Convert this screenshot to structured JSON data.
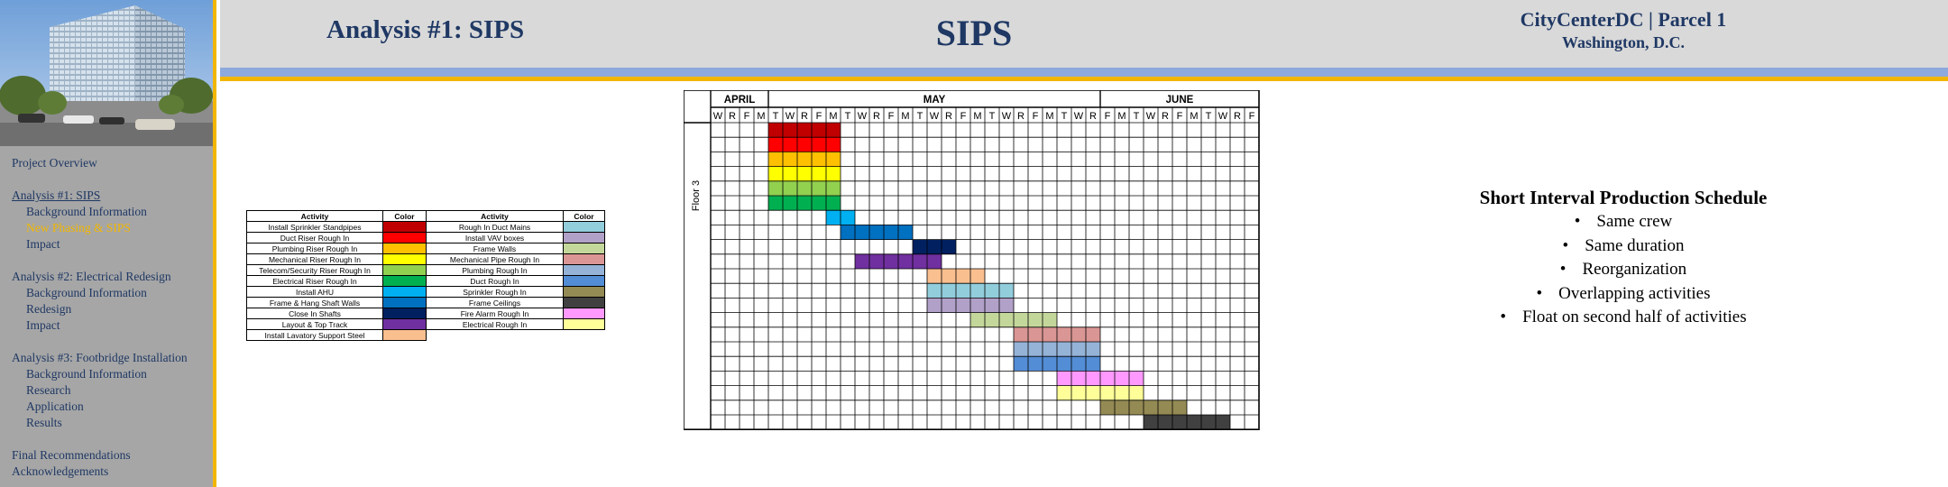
{
  "header": {
    "page_title": "Analysis #1: SIPS",
    "center_title": "SIPS",
    "project_name": "CityCenterDC | Parcel 1",
    "project_city": "Washington, D.C."
  },
  "nav": {
    "items": [
      {
        "label": "Project Overview",
        "level": 0
      },
      {
        "label": "Analysis #1: SIPS",
        "level": 0,
        "current": true,
        "gap_before": true
      },
      {
        "label": "Background Information",
        "level": 1
      },
      {
        "label": "New Phasing & SIPS",
        "level": 1,
        "active": true
      },
      {
        "label": "Impact",
        "level": 1
      },
      {
        "label": "Analysis #2: Electrical  Redesign",
        "level": 0,
        "gap_before": true
      },
      {
        "label": "Background Information",
        "level": 1
      },
      {
        "label": "Redesign",
        "level": 1
      },
      {
        "label": "Impact",
        "level": 1
      },
      {
        "label": "Analysis #3: Footbridge Installation",
        "level": 0,
        "gap_before": true
      },
      {
        "label": "Background Information",
        "level": 1
      },
      {
        "label": "Research",
        "level": 1
      },
      {
        "label": "Application",
        "level": 1
      },
      {
        "label": "Results",
        "level": 1
      },
      {
        "label": "Final Recommendations",
        "level": 0,
        "gap_before": true
      },
      {
        "label": "Acknowledgements",
        "level": 0
      }
    ]
  },
  "legend": {
    "headers": [
      "Activity",
      "Color",
      "Activity",
      "Color"
    ],
    "rows": [
      {
        "left": "Install Sprinkler Standpipes",
        "left_color": "#c00000",
        "right": "Rough In Duct Mains",
        "right_color": "#92cddc"
      },
      {
        "left": "Duct Riser Rough In",
        "left_color": "#ff0000",
        "right": "Install VAV boxes",
        "right_color": "#b1a0c7"
      },
      {
        "left": "Plumbing Riser Rough In",
        "left_color": "#ffc000",
        "right": "Frame Walls",
        "right_color": "#c4d79b"
      },
      {
        "left": "Mechanical Riser Rough In",
        "left_color": "#ffff00",
        "right": "Mechanical Pipe Rough In",
        "right_color": "#da9694"
      },
      {
        "left": "Telecom/Security Riser Rough In",
        "left_color": "#92d050",
        "right": "Plumbing Rough In",
        "right_color": "#95b3d7"
      },
      {
        "left": "Electrical Riser Rough In",
        "left_color": "#00b050",
        "right": "Duct Rough In",
        "right_color": "#538dd5"
      },
      {
        "left": "Install AHU",
        "left_color": "#00b0f0",
        "right": "Sprinkler Rough In",
        "right_color": "#948a54"
      },
      {
        "left": "Frame & Hang Shaft Walls",
        "left_color": "#0070c0",
        "right": "Frame Ceilings",
        "right_color": "#404040"
      },
      {
        "left": "Close In Shafts",
        "left_color": "#002060",
        "right": "Fire Alarm Rough In",
        "right_color": "#ff99ff"
      },
      {
        "left": "Layout & Top Track",
        "left_color": "#7030a0",
        "right": "Electrical Rough In",
        "right_color": "#ffff99"
      },
      {
        "left": "Install Lavatory Support Steel",
        "left_color": "#fabf8f",
        "right": "",
        "right_color": ""
      }
    ]
  },
  "schedule": {
    "floor_label": "Floor 3",
    "months": [
      {
        "label": "APRIL",
        "days": 4
      },
      {
        "label": "MAY",
        "days": 23
      },
      {
        "label": "JUNE",
        "days": 11
      }
    ],
    "day_letters": [
      "W",
      "R",
      "F",
      "M",
      "T",
      "W",
      "R",
      "F",
      "M",
      "T",
      "W",
      "R",
      "F",
      "M",
      "T",
      "W",
      "R",
      "F",
      "M",
      "T",
      "W",
      "R",
      "F",
      "M",
      "T",
      "W",
      "R",
      "F",
      "M",
      "T",
      "W",
      "R",
      "F",
      "M",
      "T",
      "W",
      "R",
      "F"
    ],
    "rows": [
      {
        "color": "#c00000",
        "start": 5,
        "duration": 5
      },
      {
        "color": "#ff0000",
        "start": 5,
        "duration": 5
      },
      {
        "color": "#ffc000",
        "start": 5,
        "duration": 5
      },
      {
        "color": "#ffff00",
        "start": 5,
        "duration": 5
      },
      {
        "color": "#92d050",
        "start": 5,
        "duration": 5
      },
      {
        "color": "#00b050",
        "start": 5,
        "duration": 5
      },
      {
        "color": "#00b0f0",
        "start": 9,
        "duration": 2
      },
      {
        "color": "#0070c0",
        "start": 10,
        "duration": 5
      },
      {
        "color": "#002060",
        "start": 15,
        "duration": 3
      },
      {
        "color": "#7030a0",
        "start": 11,
        "duration": 6
      },
      {
        "color": "#fabf8f",
        "start": 16,
        "duration": 4
      },
      {
        "color": "#92cddc",
        "start": 16,
        "duration": 6
      },
      {
        "color": "#b1a0c7",
        "start": 16,
        "duration": 6
      },
      {
        "color": "#c4d79b",
        "start": 19,
        "duration": 6
      },
      {
        "color": "#da9694",
        "start": 22,
        "duration": 6
      },
      {
        "color": "#95b3d7",
        "start": 22,
        "duration": 6
      },
      {
        "color": "#538dd5",
        "start": 22,
        "duration": 6
      },
      {
        "color": "#ff99ff",
        "start": 25,
        "duration": 6
      },
      {
        "color": "#ffff99",
        "start": 25,
        "duration": 6
      },
      {
        "color": "#948a54",
        "start": 28,
        "duration": 6
      },
      {
        "color": "#404040",
        "start": 31,
        "duration": 6
      }
    ]
  },
  "info": {
    "title": "Short Interval Production Schedule",
    "bullets": [
      "Same crew",
      "Same duration",
      "Reorganization",
      "Overlapping activities",
      "Float on second half of activities"
    ]
  }
}
